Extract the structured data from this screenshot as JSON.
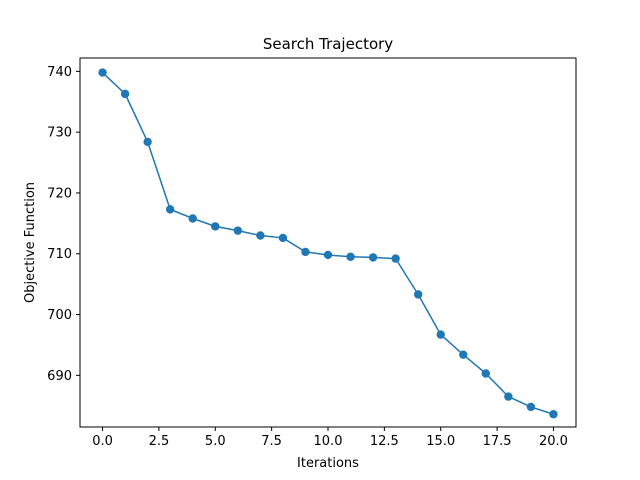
{
  "chart_data": {
    "type": "line",
    "title": "Search Trajectory",
    "xlabel": "Iterations",
    "ylabel": "Objective Function",
    "xlim": [
      -1.0,
      21.0
    ],
    "ylim": [
      681.5,
      742.2
    ],
    "xticks": [
      0.0,
      2.5,
      5.0,
      7.5,
      10.0,
      12.5,
      15.0,
      17.5,
      20.0
    ],
    "xtick_labels": [
      "0.0",
      "2.5",
      "5.0",
      "7.5",
      "10.0",
      "12.5",
      "15.0",
      "17.5",
      "20.0"
    ],
    "yticks": [
      690,
      700,
      710,
      720,
      730,
      740
    ],
    "ytick_labels": [
      "690",
      "700",
      "710",
      "720",
      "730",
      "740"
    ],
    "grid": false,
    "series": [
      {
        "color": "#1f77b4",
        "marker": "circle",
        "x": [
          0,
          1,
          2,
          3,
          4,
          5,
          6,
          7,
          8,
          9,
          10,
          11,
          12,
          13,
          14,
          15,
          16,
          17,
          18,
          19,
          20
        ],
        "y": [
          739.8,
          736.3,
          728.4,
          717.3,
          715.8,
          714.5,
          713.8,
          713.0,
          712.6,
          710.3,
          709.8,
          709.5,
          709.4,
          709.2,
          703.3,
          696.7,
          693.4,
          690.3,
          686.5,
          684.8,
          683.6
        ]
      }
    ]
  }
}
